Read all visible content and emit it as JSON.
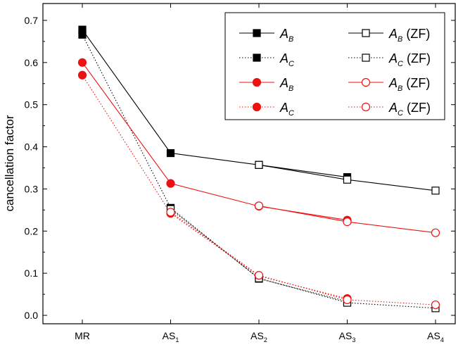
{
  "chart_data": {
    "type": "line",
    "title": "",
    "xlabel": "",
    "ylabel": "cancellation factor",
    "ylim": [
      -0.02,
      0.74
    ],
    "yticks": [
      "0.0",
      "0.1",
      "0.2",
      "0.3",
      "0.4",
      "0.5",
      "0.6",
      "0.7"
    ],
    "categories": [
      {
        "main": "MR",
        "sub": ""
      },
      {
        "main": "AS",
        "sub": "1"
      },
      {
        "main": "AS",
        "sub": "2"
      },
      {
        "main": "AS",
        "sub": "3"
      },
      {
        "main": "AS",
        "sub": "4"
      }
    ],
    "grid": false,
    "legend_placement": "top-right",
    "series": [
      {
        "key": "bk_ab",
        "name_main": "A",
        "name_sub": "B",
        "name_suffix": "",
        "color": "#000000",
        "dash": "solid",
        "marker": "square",
        "filled": true,
        "values": [
          0.678,
          0.385,
          0.357,
          0.328,
          null
        ]
      },
      {
        "key": "bk_ac",
        "name_main": "A",
        "name_sub": "C",
        "name_suffix": "",
        "color": "#000000",
        "dash": "dotted",
        "marker": "square",
        "filled": true,
        "values": [
          0.666,
          0.255,
          0.087,
          0.033,
          null
        ]
      },
      {
        "key": "rd_ab",
        "name_main": "A",
        "name_sub": "B",
        "name_suffix": "",
        "color": "#ee1111",
        "dash": "solid",
        "marker": "circle",
        "filled": true,
        "values": [
          0.6,
          0.313,
          0.259,
          0.226,
          null
        ]
      },
      {
        "key": "rd_ac",
        "name_main": "A",
        "name_sub": "C",
        "name_suffix": "",
        "color": "#ee1111",
        "dash": "dotted",
        "marker": "circle",
        "filled": true,
        "values": [
          0.57,
          0.242,
          0.093,
          0.04,
          null
        ]
      },
      {
        "key": "bk_ab_zf",
        "name_main": "A",
        "name_sub": "B",
        "name_suffix": " (ZF)",
        "color": "#000000",
        "dash": "solid",
        "marker": "square",
        "filled": false,
        "values": [
          null,
          null,
          0.357,
          0.322,
          0.296
        ]
      },
      {
        "key": "bk_ac_zf",
        "name_main": "A",
        "name_sub": "C",
        "name_suffix": " (ZF)",
        "color": "#000000",
        "dash": "dotted",
        "marker": "square",
        "filled": false,
        "values": [
          null,
          0.252,
          0.088,
          0.03,
          0.017
        ]
      },
      {
        "key": "rd_ab_zf",
        "name_main": "A",
        "name_sub": "B",
        "name_suffix": " (ZF)",
        "color": "#ee1111",
        "dash": "solid",
        "marker": "circle",
        "filled": false,
        "values": [
          null,
          null,
          0.26,
          0.222,
          0.196
        ]
      },
      {
        "key": "rd_ac_zf",
        "name_main": "A",
        "name_sub": "C",
        "name_suffix": " (ZF)",
        "color": "#ee1111",
        "dash": "dotted",
        "marker": "circle",
        "filled": false,
        "values": [
          null,
          0.245,
          0.095,
          0.037,
          0.025
        ]
      }
    ]
  }
}
